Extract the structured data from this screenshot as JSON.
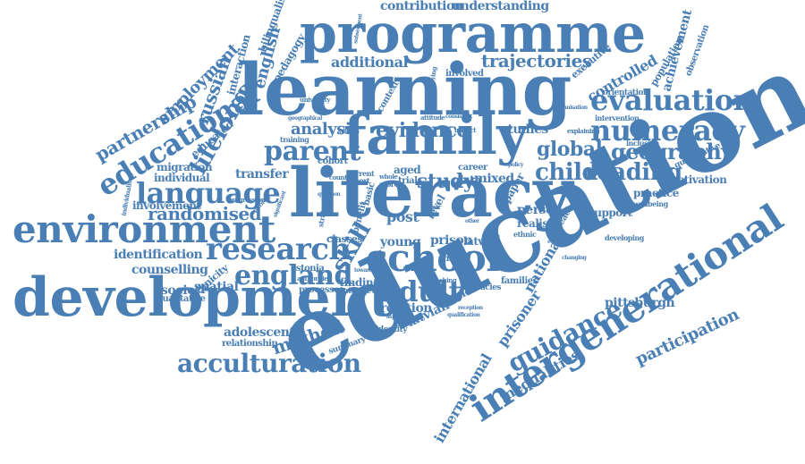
{
  "color": "#4a7fb5",
  "words": [
    {
      "text": "education"
    },
    {
      "text": "learning"
    },
    {
      "text": "literacy"
    },
    {
      "text": "programme"
    },
    {
      "text": "development"
    },
    {
      "text": "family"
    },
    {
      "text": "environment"
    },
    {
      "text": "intergenerational"
    },
    {
      "text": "school"
    },
    {
      "text": "research"
    },
    {
      "text": "evaluation"
    },
    {
      "text": "language"
    },
    {
      "text": "numeracy"
    },
    {
      "text": "acculturation"
    },
    {
      "text": "adult"
    },
    {
      "text": "parent"
    },
    {
      "text": "england"
    },
    {
      "text": "educational"
    },
    {
      "text": "guidance"
    },
    {
      "text": "child"
    },
    {
      "text": "reading"
    },
    {
      "text": "lifelong"
    },
    {
      "text": "geography"
    },
    {
      "text": "global"
    },
    {
      "text": "skill"
    },
    {
      "text": "randomised"
    },
    {
      "text": "evidence"
    },
    {
      "text": "analysis"
    },
    {
      "text": "study"
    },
    {
      "text": "trajectories"
    },
    {
      "text": "contribution"
    },
    {
      "text": "understanding"
    },
    {
      "text": "additional"
    },
    {
      "text": "partnership"
    },
    {
      "text": "russian"
    },
    {
      "text": "english"
    },
    {
      "text": "employment"
    },
    {
      "text": "method"
    },
    {
      "text": "inequalities"
    },
    {
      "text": "participation"
    },
    {
      "text": "international"
    },
    {
      "text": "prisoner"
    },
    {
      "text": "national"
    },
    {
      "text": "pittsburgh"
    },
    {
      "text": "adolescent"
    },
    {
      "text": "relationship"
    },
    {
      "text": "socio"
    },
    {
      "text": "spatial"
    },
    {
      "text": "counselling"
    },
    {
      "text": "identification"
    },
    {
      "text": "involvement"
    },
    {
      "text": "migration"
    },
    {
      "text": "individual"
    },
    {
      "text": "transfer"
    },
    {
      "text": "educated"
    },
    {
      "text": "controlled"
    },
    {
      "text": "achievement"
    },
    {
      "text": "executive"
    },
    {
      "text": "observation"
    },
    {
      "text": "population"
    },
    {
      "text": "orientation"
    },
    {
      "text": "motivation"
    },
    {
      "text": "quantitative"
    },
    {
      "text": "practice"
    },
    {
      "text": "wellbeing"
    },
    {
      "text": "support"
    },
    {
      "text": "developing"
    },
    {
      "text": "person"
    },
    {
      "text": "realist"
    },
    {
      "text": "prison"
    },
    {
      "text": "latvia"
    },
    {
      "text": "young"
    },
    {
      "text": "latvian"
    },
    {
      "text": "learner"
    },
    {
      "text": "relation"
    },
    {
      "text": "finding"
    },
    {
      "text": "interview"
    },
    {
      "text": "processes"
    },
    {
      "text": "estonia"
    },
    {
      "text": "classes"
    },
    {
      "text": "post"
    },
    {
      "text": "level"
    },
    {
      "text": "mixed"
    },
    {
      "text": "data"
    },
    {
      "text": "paper"
    },
    {
      "text": "career"
    },
    {
      "text": "studies"
    },
    {
      "text": "aged"
    },
    {
      "text": "trial"
    },
    {
      "text": "cohort"
    },
    {
      "text": "training"
    },
    {
      "text": "strategies"
    },
    {
      "text": "benefit"
    },
    {
      "text": "basic"
    },
    {
      "text": "qualitative"
    },
    {
      "text": "ethnicity"
    },
    {
      "text": "progression"
    },
    {
      "text": "minority"
    },
    {
      "text": "summary"
    },
    {
      "text": "identity"
    },
    {
      "text": "shared"
    },
    {
      "text": "families"
    },
    {
      "text": "literacies"
    },
    {
      "text": "authorities"
    },
    {
      "text": "country"
    },
    {
      "text": "involved"
    },
    {
      "text": "context"
    },
    {
      "text": "interaction"
    },
    {
      "text": "pedagogy"
    },
    {
      "text": "bilingualism"
    },
    {
      "text": "university"
    },
    {
      "text": "inclusion"
    },
    {
      "text": "intervention"
    },
    {
      "text": "teacher"
    },
    {
      "text": "ethnic"
    },
    {
      "text": "current"
    },
    {
      "text": "report"
    },
    {
      "text": "whole"
    },
    {
      "text": "more"
    },
    {
      "text": "explaining"
    },
    {
      "text": "organisation"
    },
    {
      "text": "demystifying"
    },
    {
      "text": "geographical"
    },
    {
      "text": "attitude"
    },
    {
      "text": "consistent"
    },
    {
      "text": "impact"
    },
    {
      "text": "subsequent"
    },
    {
      "text": "syllabus"
    },
    {
      "text": "individualised"
    },
    {
      "text": "significant"
    },
    {
      "text": "teaching"
    },
    {
      "text": "reception"
    },
    {
      "text": "aspiration"
    },
    {
      "text": "qualification"
    },
    {
      "text": "changing"
    },
    {
      "text": "group"
    },
    {
      "text": "towards"
    },
    {
      "text": "evaluated"
    },
    {
      "text": "year"
    },
    {
      "text": "scoping"
    },
    {
      "text": "other"
    },
    {
      "text": "article"
    },
    {
      "text": "policy"
    },
    {
      "text": "sample"
    },
    {
      "text": "question"
    }
  ]
}
